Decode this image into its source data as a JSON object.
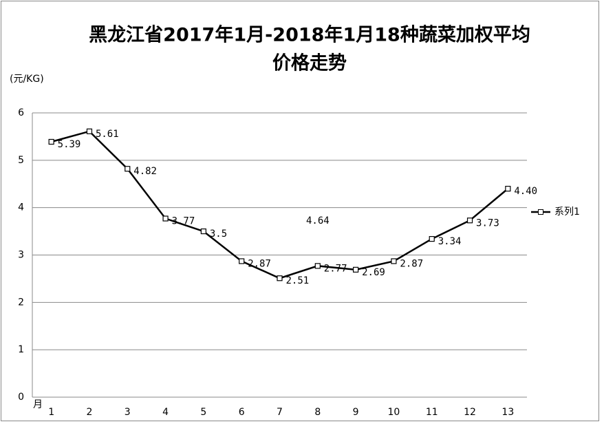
{
  "chart_data": {
    "type": "line",
    "title": [
      "黑龙江省2017年1月-2018年1月18种蔬菜加权平均",
      "价格走势"
    ],
    "y_label": "(元/KG)",
    "x_label": "月",
    "categories": [
      "1",
      "2",
      "3",
      "4",
      "5",
      "6",
      "7",
      "8",
      "9",
      "10",
      "11",
      "12",
      "13"
    ],
    "series": [
      {
        "name": "系列1",
        "color": "#000000",
        "values": [
          5.39,
          5.61,
          4.82,
          3.77,
          3.5,
          2.87,
          2.51,
          2.77,
          2.69,
          2.87,
          3.34,
          3.73,
          4.4
        ],
        "value_labels": [
          "5.39",
          "5.61",
          "4.82",
          "3.77",
          "3.5",
          "2.87",
          "2.51",
          "2.77",
          "2.69",
          "2.87",
          "3.34",
          "3.73",
          "4.40"
        ]
      }
    ],
    "annotation": "4.64",
    "ylim": [
      0,
      6
    ],
    "yticks": [
      0,
      1,
      2,
      3,
      4,
      5,
      6
    ],
    "grid": true,
    "legend": "right"
  }
}
